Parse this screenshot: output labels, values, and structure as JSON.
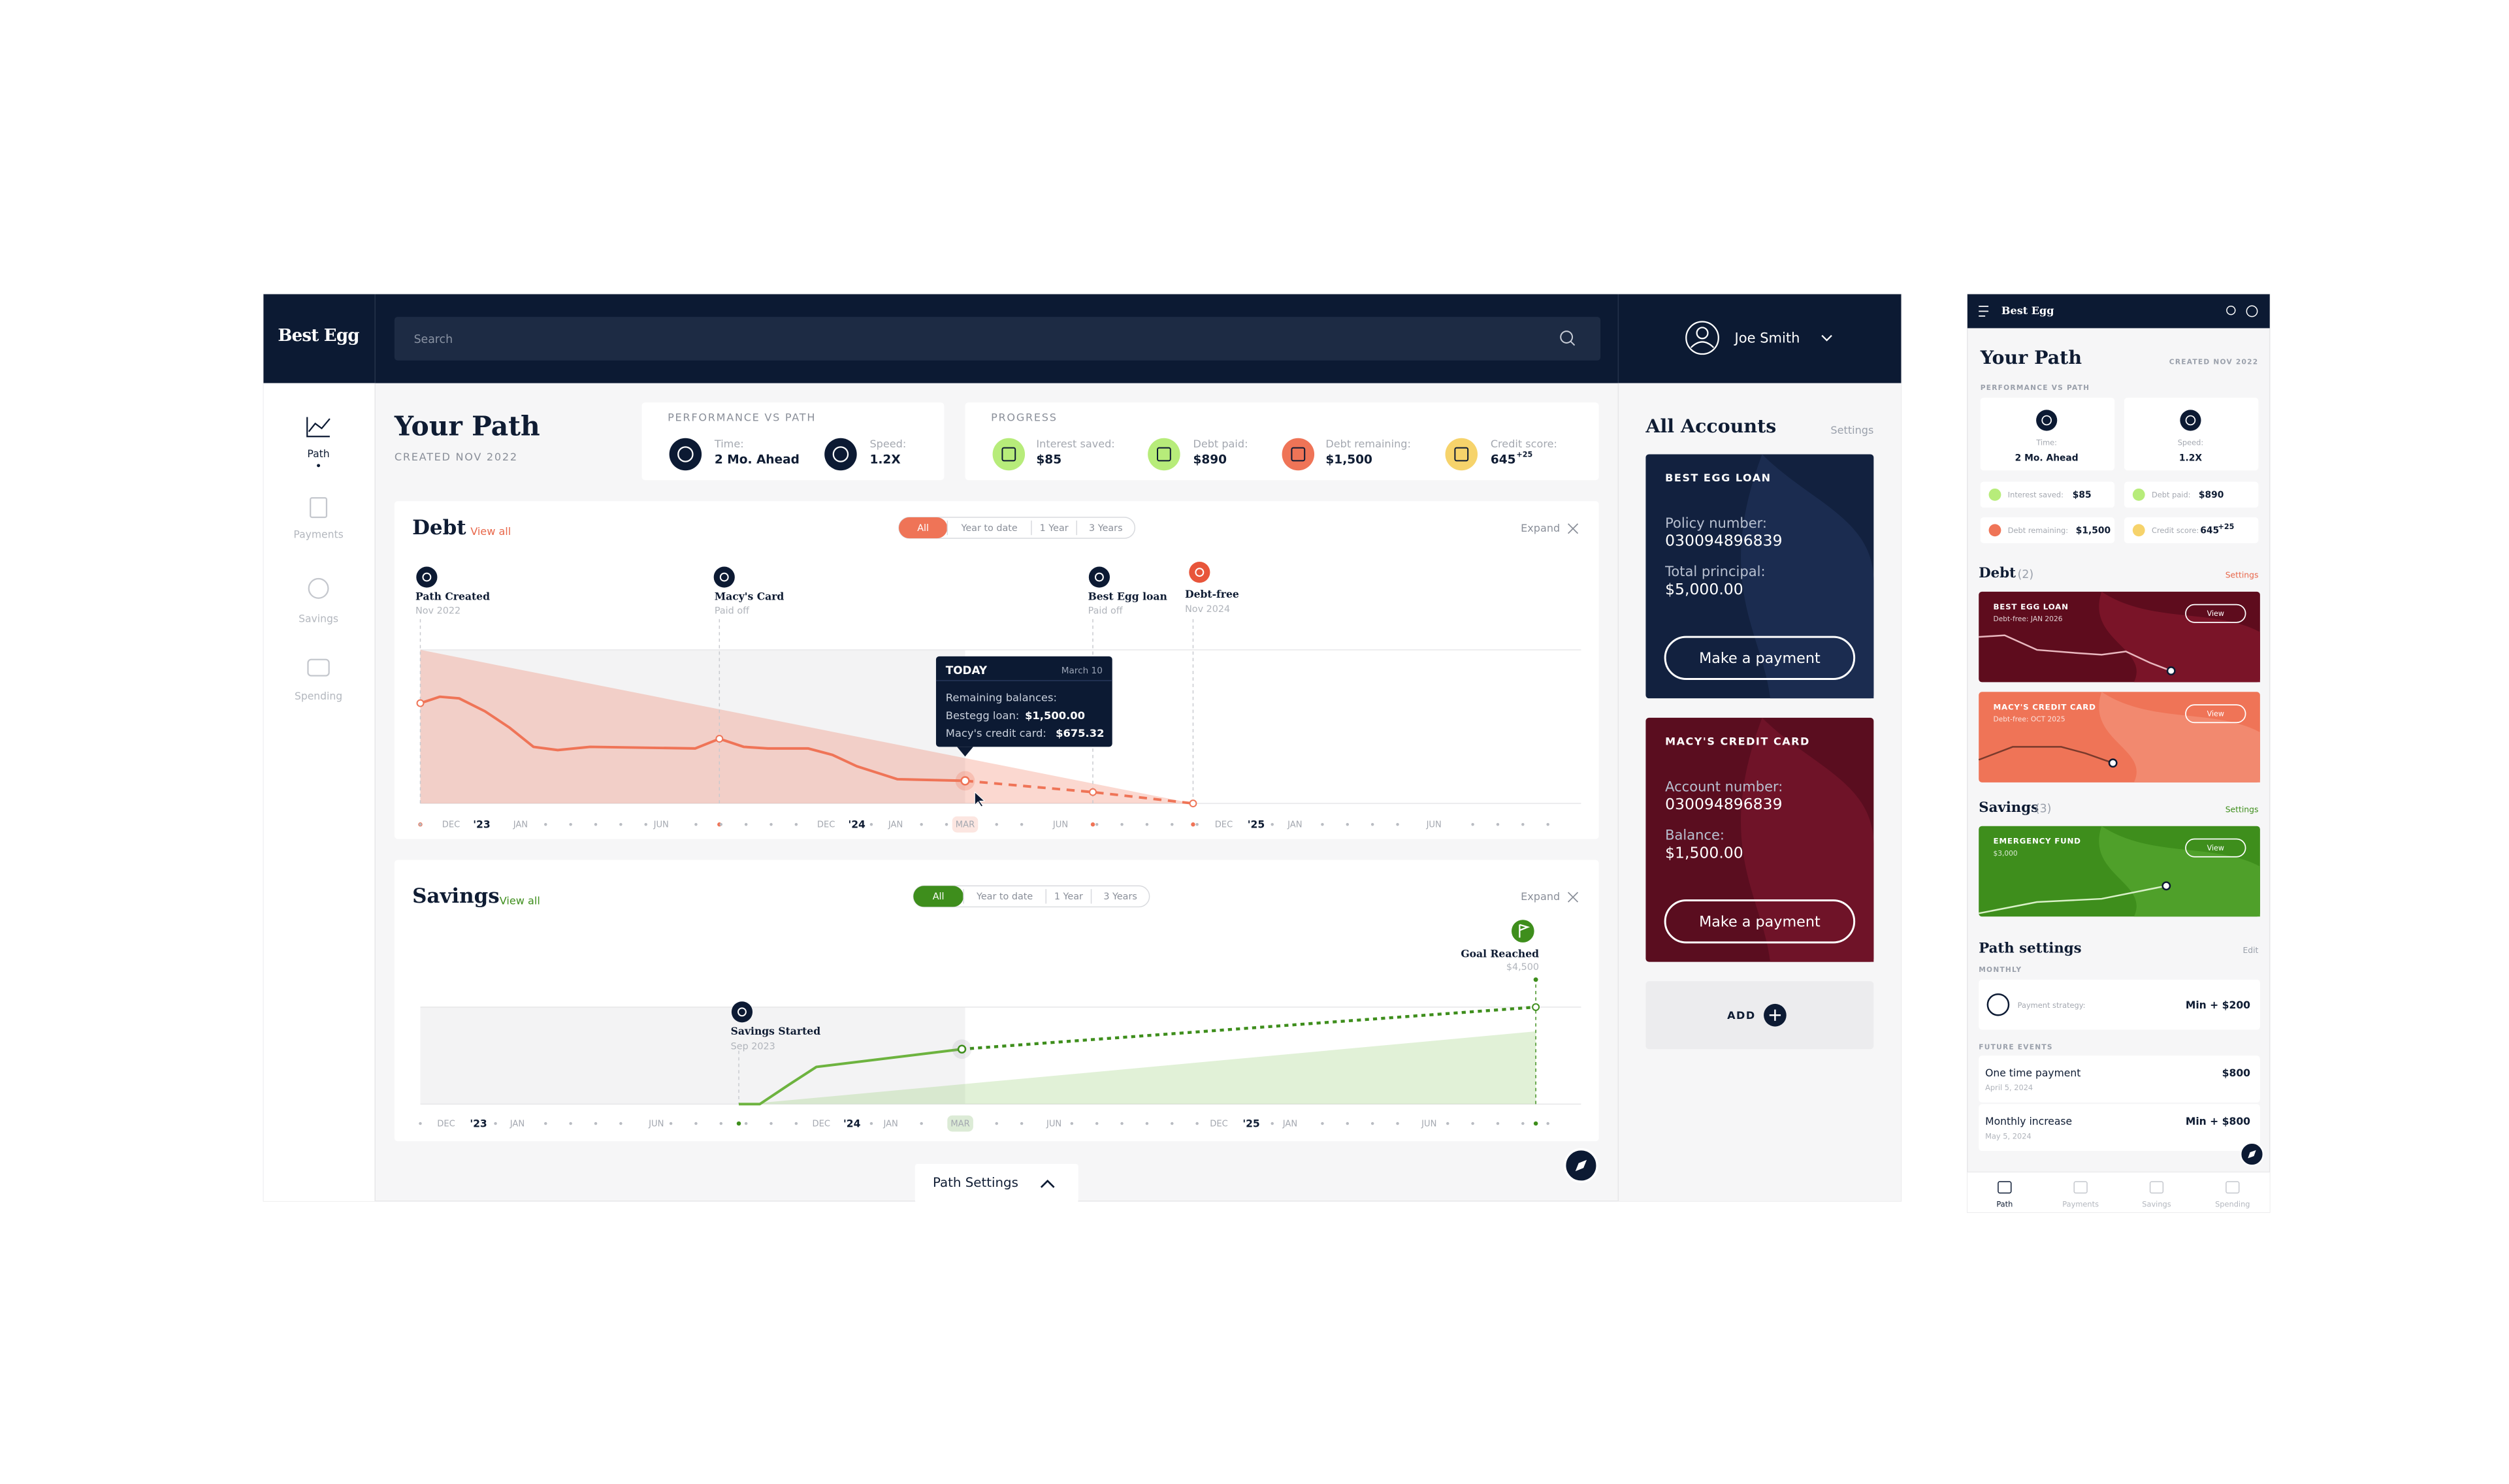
{
  "header": {
    "brand": "Best Egg",
    "search_placeholder": "Search",
    "user_name": "Joe Smith"
  },
  "nav": [
    "Path",
    "Payments",
    "Savings",
    "Spending"
  ],
  "page": {
    "title": "Your Path",
    "created": "CREATED NOV 2022"
  },
  "performance": {
    "label": "PERFORMANCE VS PATH",
    "items": [
      {
        "label": "Time:",
        "value": "2 Mo. Ahead"
      },
      {
        "label": "Speed:",
        "value": "1.2X"
      }
    ]
  },
  "progress": {
    "label": "PROGRESS",
    "items": [
      {
        "label": "Interest saved:",
        "value": "$85"
      },
      {
        "label": "Debt paid:",
        "value": "$890"
      },
      {
        "label": "Debt remaining:",
        "value": "$1,500"
      },
      {
        "label": "Credit score:",
        "value": "645",
        "badge": "+25"
      }
    ]
  },
  "debt": {
    "title": "Debt",
    "view_all": "View all",
    "filters": [
      "All",
      "Year to date",
      "1 Year",
      "3 Years"
    ],
    "expand": "Expand",
    "milestones": [
      {
        "title": "Path Created",
        "sub": "Nov 2022"
      },
      {
        "title": "Macy's Card",
        "sub": "Paid off"
      },
      {
        "title": "Best Egg loan",
        "sub": "Paid off"
      },
      {
        "title": "Debt-free",
        "sub": "Nov 2024"
      }
    ],
    "tooltip": {
      "title": "TODAY",
      "date": "March 10",
      "heading": "Remaining balances:",
      "lines": [
        {
          "label": "Bestegg loan:",
          "value": "$1,500.00"
        },
        {
          "label": "Macy's credit card:",
          "value": "$675.32"
        }
      ]
    },
    "axis_labels": [
      "DEC",
      "'23",
      "JAN",
      "JUN",
      "DEC",
      "'24",
      "JAN",
      "MAR",
      "JUN",
      "DEC",
      "'25",
      "JAN",
      "JUN"
    ]
  },
  "savings": {
    "title": "Savings",
    "view_all": "View all",
    "filters": [
      "All",
      "Year to date",
      "1 Year",
      "3 Years"
    ],
    "expand": "Expand",
    "milestones": [
      {
        "title": "Savings Started",
        "sub": "Sep 2023"
      },
      {
        "title": "Goal Reached",
        "sub": "$4,500"
      }
    ],
    "axis_labels": [
      "DEC",
      "'23",
      "JAN",
      "JUN",
      "DEC",
      "'24",
      "JAN",
      "MAR",
      "JUN",
      "DEC",
      "'25",
      "JAN",
      "JUN"
    ]
  },
  "path_settings_button": "Path Settings",
  "accounts": {
    "title": "All Accounts",
    "settings": "Settings",
    "cards": [
      {
        "name": "BEST EGG LOAN",
        "field1_label": "Policy number:",
        "field1_value": "030094896839",
        "field2_label": "Total principal:",
        "field2_value": "$5,000.00",
        "button": "Make a payment"
      },
      {
        "name": "MACY'S CREDIT CARD",
        "field1_label": "Account number:",
        "field1_value": "030094896839",
        "field2_label": "Balance:",
        "field2_value": "$1,500.00",
        "button": "Make a payment"
      }
    ],
    "add": "ADD"
  },
  "mobile": {
    "debt": {
      "title": "Debt",
      "count": "(2)",
      "settings": "Settings",
      "cards": [
        {
          "name": "BEST EGG LOAN",
          "sub": "Debt-free: JAN 2026",
          "button": "View"
        },
        {
          "name": "MACY'S CREDIT CARD",
          "sub": "Debt-free: OCT 2025",
          "button": "View"
        }
      ]
    },
    "savings": {
      "title": "Savings",
      "count": "(3)",
      "settings": "Settings",
      "cards": [
        {
          "name": "EMERGENCY FUND",
          "sub": "$3,000",
          "button": "View"
        }
      ]
    },
    "path_settings": {
      "title": "Path settings",
      "edit": "Edit",
      "monthly_label": "MONTHLY",
      "strategy_label": "Payment strategy:",
      "strategy_value": "Min + $200",
      "future_label": "FUTURE EVENTS",
      "events": [
        {
          "title": "One time payment",
          "date": "April 5, 2024",
          "value": "$800"
        },
        {
          "title": "Monthly increase",
          "date": "May 5, 2024",
          "value": "Min + $800"
        }
      ]
    }
  }
}
